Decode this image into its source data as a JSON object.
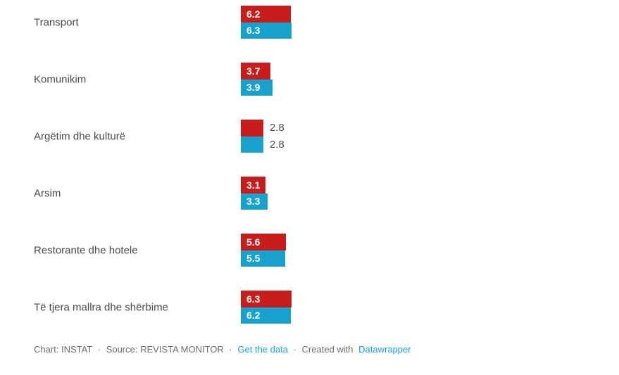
{
  "chart_data": {
    "type": "bar",
    "orientation": "horizontal",
    "grid": false,
    "legend": false,
    "axes_hidden": true,
    "categories": [
      "Transport",
      "Komunikim",
      "Argëtim dhe kulturë",
      "Arsim",
      "Restorante dhe hotele",
      "Të tjera mallra dhe shërbime"
    ],
    "series": [
      {
        "name": "red-series",
        "color": "#c71e1d",
        "values": [
          6.2,
          3.7,
          2.8,
          3.1,
          5.6,
          6.3
        ]
      },
      {
        "name": "blue-series",
        "color": "#18a1cd",
        "values": [
          6.3,
          3.9,
          2.8,
          3.3,
          5.5,
          6.2
        ]
      }
    ],
    "value_label_placement": [
      "inside",
      "inside",
      "outside",
      "inside",
      "inside",
      "inside"
    ]
  },
  "colors": {
    "red_bar": "#c71e1d",
    "blue_bar": "#18a1cd",
    "link": "#18a1cd",
    "label_text": "#494949",
    "footer_text": "#6e6e6e"
  },
  "footer": {
    "credit_chart": "Chart: INSTAT",
    "credit_source": "Source: REVISTA MONITOR",
    "separator": "·",
    "get_data_label": "Get the data",
    "created_with_label": "Created with",
    "datawrapper_label": "Datawrapper"
  }
}
